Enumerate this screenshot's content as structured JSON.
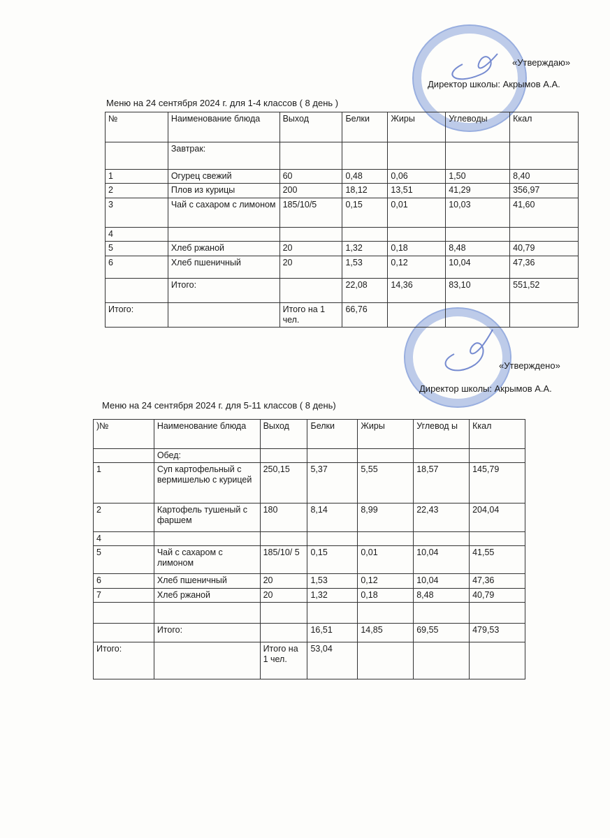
{
  "colors": {
    "ink": "#1a1a1a",
    "stamp": "#466ec8"
  },
  "section1": {
    "approval": "«Утверждаю»",
    "director": "Директор школы: Акрымов А.А.",
    "title": "Меню   на   24   сентября  2024 г. для 1-4 классов ( 8 день )",
    "headers": [
      "№",
      "Наименование блюда",
      "Выход",
      "Белки",
      "Жиры",
      "Углеводы",
      "Ккал"
    ],
    "rows": [
      [
        "",
        "Завтрак:",
        "",
        "",
        "",
        "",
        ""
      ],
      [
        "1",
        "Огурец  свежий",
        "60",
        "0,48",
        "0,06",
        "1,50",
        "8,40"
      ],
      [
        "2",
        "Плов из курицы",
        "200",
        "18,12",
        "13,51",
        "41,29",
        "356,97"
      ],
      [
        "3",
        "Чай с сахаром  с лимоном",
        "185/10/5",
        "0,15",
        "0,01",
        "10,03",
        "41,60"
      ],
      [
        "4",
        "",
        "",
        "",
        "",
        "",
        ""
      ],
      [
        "5",
        "Хлеб ржаной",
        "20",
        "1,32",
        "0,18",
        "8,48",
        "40,79"
      ],
      [
        "6",
        "Хлеб пшеничный",
        "20",
        "1,53",
        "0,12",
        "10,04",
        "47,36"
      ],
      [
        "",
        "Итого:",
        "",
        "22,08",
        "14,36",
        "83,10",
        "551,52"
      ],
      [
        "Итого:",
        "",
        "Итого на 1 чел.",
        "66,76",
        "",
        "",
        ""
      ]
    ]
  },
  "section2": {
    "approval": "«Утверждено»",
    "director": "Директор школы: Акрымов А.А.",
    "title": "Меню   на   24   сентября   2024  г. для 5-11 классов  ( 8 день)",
    "headers": [
      ")№",
      "Наименование блюда",
      "Выход",
      "Белки",
      "Жиры",
      "Углевод ы",
      "Ккал"
    ],
    "rows": [
      [
        "",
        "Обед:",
        "",
        "",
        "",
        "",
        ""
      ],
      [
        "1",
        "Суп картофельный с вермишелью с курицей",
        "250,15",
        "5,37",
        "5,55",
        "18,57",
        "145,79"
      ],
      [
        "2",
        "Картофель тушеный с фаршем",
        "180",
        "8,14",
        "8,99",
        "22,43",
        "204,04"
      ],
      [
        "4",
        "",
        "",
        "",
        "",
        "",
        ""
      ],
      [
        "5",
        "Чай с сахаром с лимоном",
        "185/10/ 5",
        "0,15",
        "0,01",
        "10,04",
        "41,55"
      ],
      [
        "6",
        "Хлеб пшеничный",
        "20",
        "1,53",
        "0,12",
        "10,04",
        "47,36"
      ],
      [
        "7",
        "Хлеб ржаной",
        "20",
        "1,32",
        "0,18",
        "8,48",
        "40,79"
      ],
      [
        "",
        "",
        "",
        "",
        "",
        "",
        ""
      ],
      [
        "",
        "Итого:",
        "",
        "16,51",
        "14,85",
        "69,55",
        "479,53"
      ],
      [
        "Итого:",
        "",
        "Итого на 1 чел.",
        "53,04",
        "",
        "",
        ""
      ]
    ]
  }
}
